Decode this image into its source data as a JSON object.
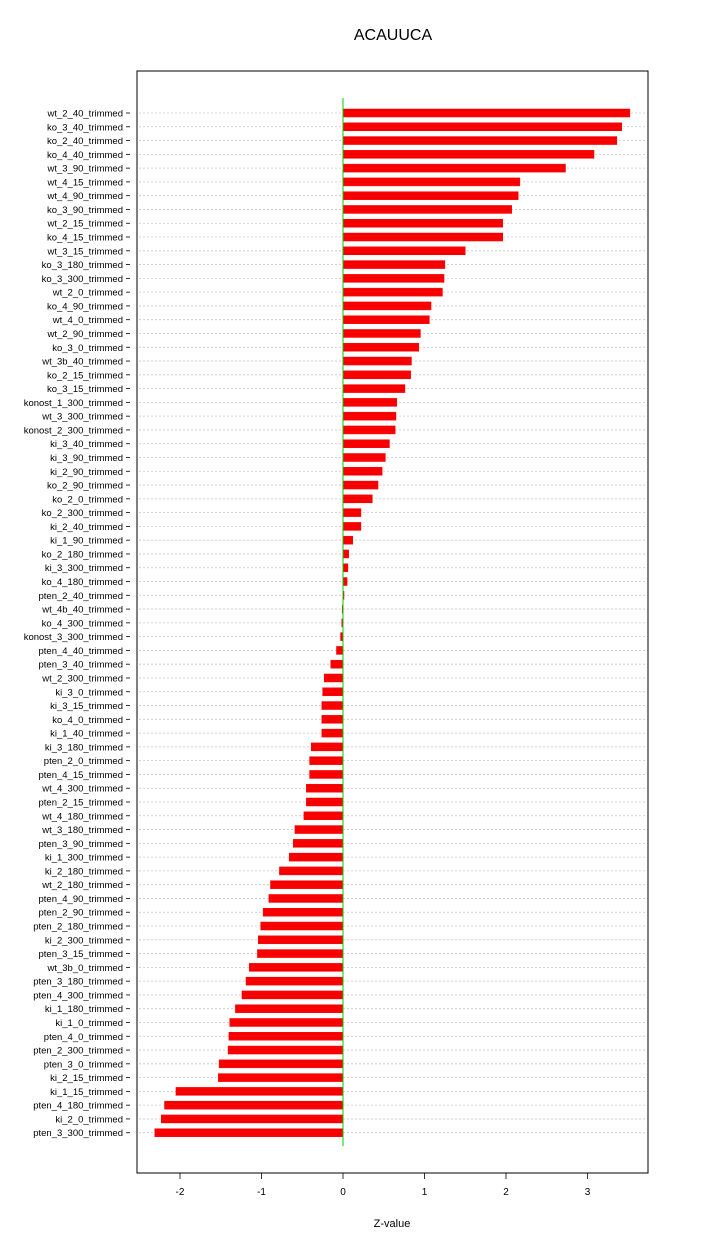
{
  "chart_data": {
    "type": "bar",
    "orientation": "horizontal",
    "title": "ACAUUCA",
    "xlabel": "Z-value",
    "ylabel": "",
    "xlim": [
      -2.55,
      3.75
    ],
    "xticks": [
      -2,
      -1,
      0,
      1,
      2,
      3
    ],
    "grid": "horizontal dotted",
    "colors": {
      "bar_fill": "#ff0000",
      "bar_stripe": "#cc0000",
      "zero_line": "#00cc00",
      "grid": "#c8c8c8",
      "frame": "#000000"
    },
    "categories": [
      "wt_2_40_trimmed",
      "ko_3_40_trimmed",
      "ko_2_40_trimmed",
      "ko_4_40_trimmed",
      "wt_3_90_trimmed",
      "wt_4_15_trimmed",
      "wt_4_90_trimmed",
      "ko_3_90_trimmed",
      "wt_2_15_trimmed",
      "ko_4_15_trimmed",
      "wt_3_15_trimmed",
      "ko_3_180_trimmed",
      "ko_3_300_trimmed",
      "wt_2_0_trimmed",
      "ko_4_90_trimmed",
      "wt_4_0_trimmed",
      "wt_2_90_trimmed",
      "ko_3_0_trimmed",
      "wt_3b_40_trimmed",
      "ko_2_15_trimmed",
      "ko_3_15_trimmed",
      "konost_1_300_trimmed",
      "wt_3_300_trimmed",
      "konost_2_300_trimmed",
      "ki_3_40_trimmed",
      "ki_3_90_trimmed",
      "ki_2_90_trimmed",
      "ko_2_90_trimmed",
      "ko_2_0_trimmed",
      "ko_2_300_trimmed",
      "ki_2_40_trimmed",
      "ki_1_90_trimmed",
      "ko_2_180_trimmed",
      "ki_3_300_trimmed",
      "ko_4_180_trimmed",
      "pten_2_40_trimmed",
      "wt_4b_40_trimmed",
      "ko_4_300_trimmed",
      "konost_3_300_trimmed",
      "pten_4_40_trimmed",
      "pten_3_40_trimmed",
      "wt_2_300_trimmed",
      "ki_3_0_trimmed",
      "ki_3_15_trimmed",
      "ko_4_0_trimmed",
      "ki_1_40_trimmed",
      "ki_3_180_trimmed",
      "pten_2_0_trimmed",
      "pten_4_15_trimmed",
      "wt_4_300_trimmed",
      "pten_2_15_trimmed",
      "wt_4_180_trimmed",
      "wt_3_180_trimmed",
      "pten_3_90_trimmed",
      "ki_1_300_trimmed",
      "ki_2_180_trimmed",
      "wt_2_180_trimmed",
      "pten_4_90_trimmed",
      "pten_2_90_trimmed",
      "pten_2_180_trimmed",
      "ki_2_300_trimmed",
      "pten_3_15_trimmed",
      "wt_3b_0_trimmed",
      "pten_3_180_trimmed",
      "pten_4_300_trimmed",
      "ki_1_180_trimmed",
      "ki_1_0_trimmed",
      "pten_4_0_trimmed",
      "pten_2_300_trimmed",
      "pten_3_0_trimmed",
      "ki_2_15_trimmed",
      "ki_1_15_trimmed",
      "pten_4_180_trimmed",
      "ki_2_0_trimmed",
      "pten_3_300_trimmed"
    ],
    "values": [
      3.52,
      3.42,
      3.36,
      3.08,
      2.73,
      2.17,
      2.15,
      2.07,
      1.96,
      1.96,
      1.5,
      1.25,
      1.24,
      1.22,
      1.08,
      1.06,
      0.95,
      0.93,
      0.84,
      0.83,
      0.76,
      0.66,
      0.65,
      0.64,
      0.57,
      0.52,
      0.48,
      0.43,
      0.36,
      0.22,
      0.22,
      0.12,
      0.07,
      0.06,
      0.05,
      0.005,
      -0.01,
      -0.015,
      -0.03,
      -0.08,
      -0.15,
      -0.23,
      -0.25,
      -0.26,
      -0.26,
      -0.26,
      -0.39,
      -0.41,
      -0.41,
      -0.45,
      -0.45,
      -0.48,
      -0.59,
      -0.61,
      -0.66,
      -0.78,
      -0.89,
      -0.91,
      -0.98,
      -1.01,
      -1.04,
      -1.05,
      -1.15,
      -1.19,
      -1.24,
      -1.32,
      -1.39,
      -1.4,
      -1.41,
      -1.52,
      -1.53,
      -2.05,
      -2.19,
      -2.23,
      -2.31
    ]
  }
}
